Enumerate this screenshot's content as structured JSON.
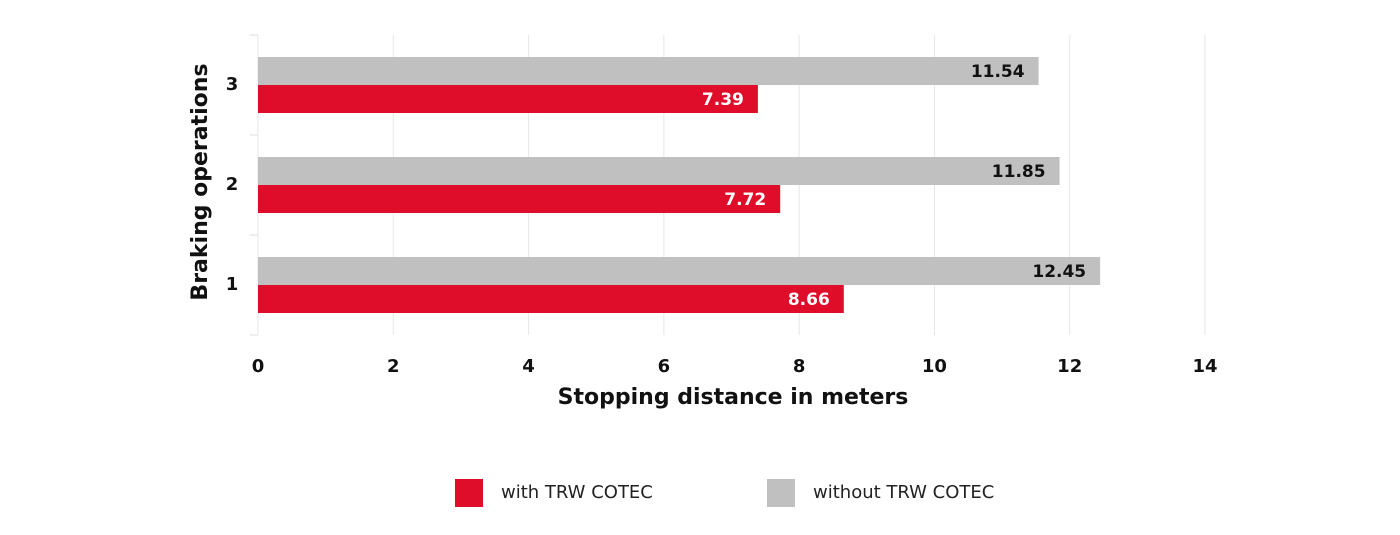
{
  "chart_data": {
    "type": "barh",
    "x_label": "Stopping distance in meters",
    "y_label": "Braking operations",
    "categories": [
      "1",
      "2",
      "3"
    ],
    "series": [
      {
        "name": "with TRW COTEC",
        "color": "#e00d2a",
        "values": [
          8.66,
          7.72,
          7.39
        ]
      },
      {
        "name": "without TRW COTEC",
        "color": "#c0c0c0",
        "values": [
          12.45,
          11.85,
          11.54
        ]
      }
    ],
    "xlim": [
      0,
      14
    ],
    "xticks": [
      0,
      2,
      4,
      6,
      8,
      10,
      12,
      14
    ],
    "grid": true,
    "legend": "bottom"
  }
}
